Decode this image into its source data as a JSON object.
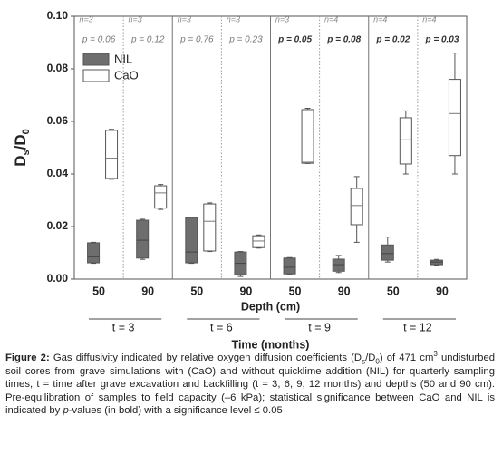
{
  "chart_data": {
    "type": "box",
    "y_label": [
      "D",
      "s",
      "/D",
      "0"
    ],
    "x_label": "Depth (cm)",
    "group_label": "Time (months)",
    "groups": [
      "t = 3",
      "t = 6",
      "t = 9",
      "t = 12"
    ],
    "categories": [
      "50",
      "90",
      "50",
      "90",
      "50",
      "90",
      "50",
      "90"
    ],
    "ylim": [
      0,
      0.1
    ],
    "yticks": [
      {
        "value": 0,
        "label": "0.00"
      },
      0.02,
      0.04,
      0.06,
      0.08,
      {
        "value": 0.1,
        "label": "0.10"
      }
    ],
    "legend": "upper left",
    "series": [
      {
        "name": "NIL",
        "color": "#6e6e6e",
        "values": [
          {
            "min": 0.006,
            "q1": 0.0062,
            "median": 0.0085,
            "q3": 0.0138,
            "max": 0.014
          },
          {
            "min": 0.0075,
            "q1": 0.008,
            "median": 0.0148,
            "q3": 0.0224,
            "max": 0.0228
          },
          {
            "min": 0.006,
            "q1": 0.0062,
            "median": 0.0103,
            "q3": 0.0234,
            "max": 0.0235
          },
          {
            "min": 0.001,
            "q1": 0.0017,
            "median": 0.006,
            "q3": 0.0103,
            "max": 0.0105
          },
          {
            "min": 0.0018,
            "q1": 0.002,
            "median": 0.0045,
            "q3": 0.008,
            "max": 0.0082
          },
          {
            "min": 0.0025,
            "q1": 0.003,
            "median": 0.0055,
            "q3": 0.0076,
            "max": 0.009
          },
          {
            "min": 0.0065,
            "q1": 0.0072,
            "median": 0.0097,
            "q3": 0.013,
            "max": 0.016
          },
          {
            "min": 0.0052,
            "q1": 0.0055,
            "median": 0.0065,
            "q3": 0.0072,
            "max": 0.0075
          }
        ]
      },
      {
        "name": "CaO",
        "color": "#ffffff",
        "values": [
          {
            "min": 0.038,
            "q1": 0.0383,
            "median": 0.046,
            "q3": 0.0566,
            "max": 0.057
          },
          {
            "min": 0.0265,
            "q1": 0.027,
            "median": 0.0328,
            "q3": 0.0355,
            "max": 0.036
          },
          {
            "min": 0.0105,
            "q1": 0.0107,
            "median": 0.022,
            "q3": 0.0286,
            "max": 0.029
          },
          {
            "min": 0.0118,
            "q1": 0.012,
            "median": 0.0145,
            "q3": 0.0165,
            "max": 0.0168
          },
          {
            "min": 0.044,
            "q1": 0.0441,
            "median": 0.0445,
            "q3": 0.0645,
            "max": 0.065
          },
          {
            "min": 0.014,
            "q1": 0.0207,
            "median": 0.028,
            "q3": 0.0345,
            "max": 0.039
          },
          {
            "min": 0.04,
            "q1": 0.0438,
            "median": 0.053,
            "q3": 0.0614,
            "max": 0.064
          },
          {
            "min": 0.04,
            "q1": 0.047,
            "median": 0.063,
            "q3": 0.076,
            "max": 0.086
          }
        ]
      }
    ],
    "annotations": [
      {
        "n": "n=3",
        "p": "p = 0.06",
        "bold": false
      },
      {
        "n": "n=3",
        "p": "p = 0.12",
        "bold": false
      },
      {
        "n": "n=3",
        "p": "p = 0.76",
        "bold": false
      },
      {
        "n": "n=3",
        "p": "p = 0.23",
        "bold": false
      },
      {
        "n": "n=3",
        "p": "p = 0.05",
        "bold": true
      },
      {
        "n": "n=4",
        "p": "p = 0.08",
        "bold": true
      },
      {
        "n": "n=4",
        "p": "p = 0.02",
        "bold": true
      },
      {
        "n": "n=4",
        "p": "p = 0.03",
        "bold": true
      }
    ]
  },
  "caption": [
    {
      "t": "Figure 2:",
      "style": "bold"
    },
    {
      "t": " Gas diffusivity indicated by relative oxygen diffusion coefficients (D"
    },
    {
      "t": "s",
      "style": "sub"
    },
    {
      "t": "/D"
    },
    {
      "t": "0",
      "style": "sub"
    },
    {
      "t": ") of 471 cm"
    },
    {
      "t": "3",
      "style": "sup"
    },
    {
      "t": " undisturbed soil cores from grave simulations with (CaO) and without quicklime addition (NIL) for quarterly sampling times, t = time after grave excavation and backfilling (t = 3, 6, 9, 12 months) and depths (50 and 90 cm). Pre-equilibration of samples to field capacity (–6 kPa); statistical significance between CaO and NIL is indicated by "
    },
    {
      "t": "p",
      "style": "italic"
    },
    {
      "t": "-values (in bold) with a significance level ≤ 0.05"
    }
  ]
}
